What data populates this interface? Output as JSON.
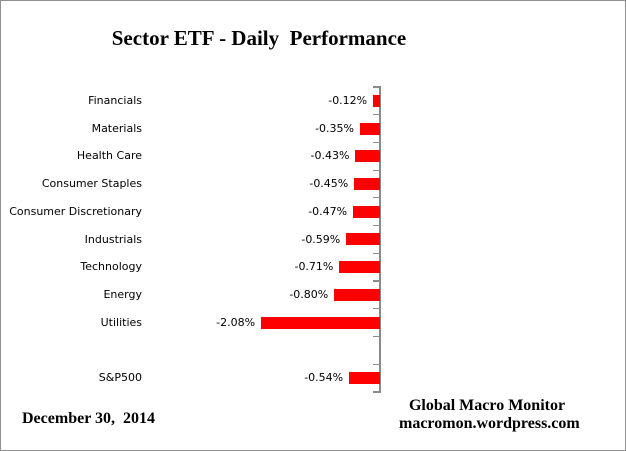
{
  "title": "Sector ETF - Daily  Performance",
  "footer": {
    "date": "December 30,  2014",
    "attribution_line1": "Global Macro Monitor",
    "attribution_line2": "macromon.wordpress.com"
  },
  "chart_data": {
    "type": "bar",
    "orientation": "horizontal",
    "title": "Sector ETF - Daily Performance",
    "categories": [
      "Financials",
      "Materials",
      "Health Care",
      "Consumer Staples",
      "Consumer Discretionary",
      "Industrials",
      "Technology",
      "Energy",
      "Utilities",
      "",
      "S&P500"
    ],
    "values": [
      -0.12,
      -0.35,
      -0.43,
      -0.45,
      -0.47,
      -0.59,
      -0.71,
      -0.8,
      -2.08,
      null,
      -0.54
    ],
    "value_labels": [
      "-0.12%",
      "-0.35%",
      "-0.43%",
      "-0.45%",
      "-0.47%",
      "-0.59%",
      "-0.71%",
      "-0.80%",
      "-2.08%",
      "",
      "-0.54%"
    ],
    "unit": "%",
    "bar_color": "#ff0000",
    "axis_color": "#8a8a8a",
    "text_color": "#000000",
    "xlim_estimated": [
      -4,
      0
    ],
    "grid": false,
    "legend": false,
    "data_label_position": "outside-end-left"
  }
}
